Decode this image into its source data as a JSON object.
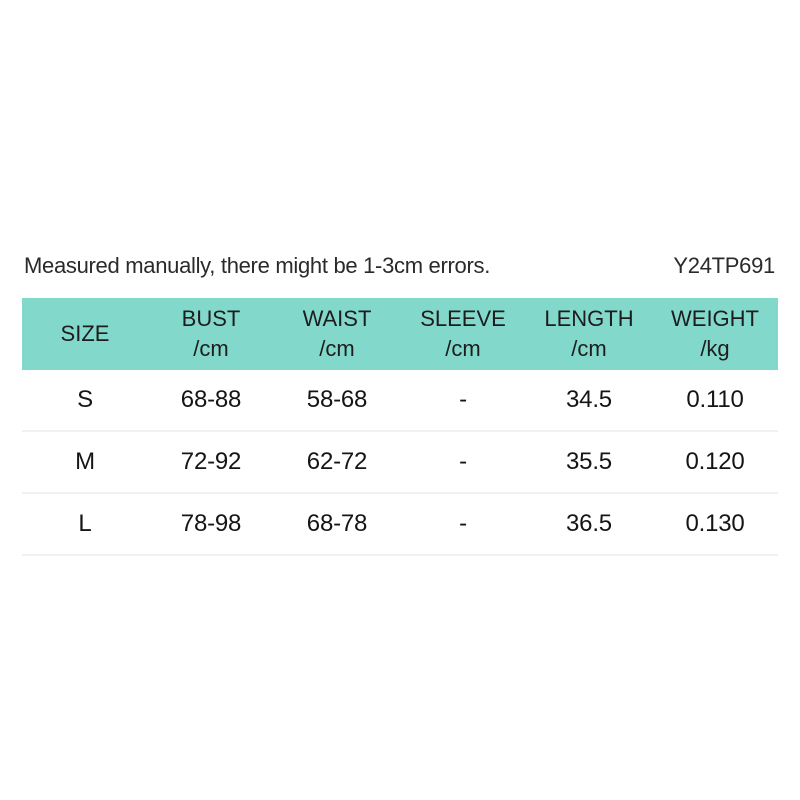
{
  "note": "Measured manually, there might be 1-3cm errors.",
  "product_code": "Y24TP691",
  "colors": {
    "header_bg": "#82d9cb",
    "divider": "#f1f1f1",
    "text": "#1d1d1d",
    "background": "#ffffff"
  },
  "table": {
    "headers": [
      {
        "label": "SIZE",
        "unit": ""
      },
      {
        "label": "BUST",
        "unit": "/cm"
      },
      {
        "label": "WAIST",
        "unit": "/cm"
      },
      {
        "label": "SLEEVE",
        "unit": "/cm"
      },
      {
        "label": "LENGTH",
        "unit": "/cm"
      },
      {
        "label": "WEIGHT",
        "unit": "/kg"
      }
    ],
    "rows": [
      {
        "size": "S",
        "bust": "68-88",
        "waist": "58-68",
        "sleeve": "-",
        "length": "34.5",
        "weight": "0.110"
      },
      {
        "size": "M",
        "bust": "72-92",
        "waist": "62-72",
        "sleeve": "-",
        "length": "35.5",
        "weight": "0.120"
      },
      {
        "size": "L",
        "bust": "78-98",
        "waist": "68-78",
        "sleeve": "-",
        "length": "36.5",
        "weight": "0.130"
      }
    ]
  }
}
